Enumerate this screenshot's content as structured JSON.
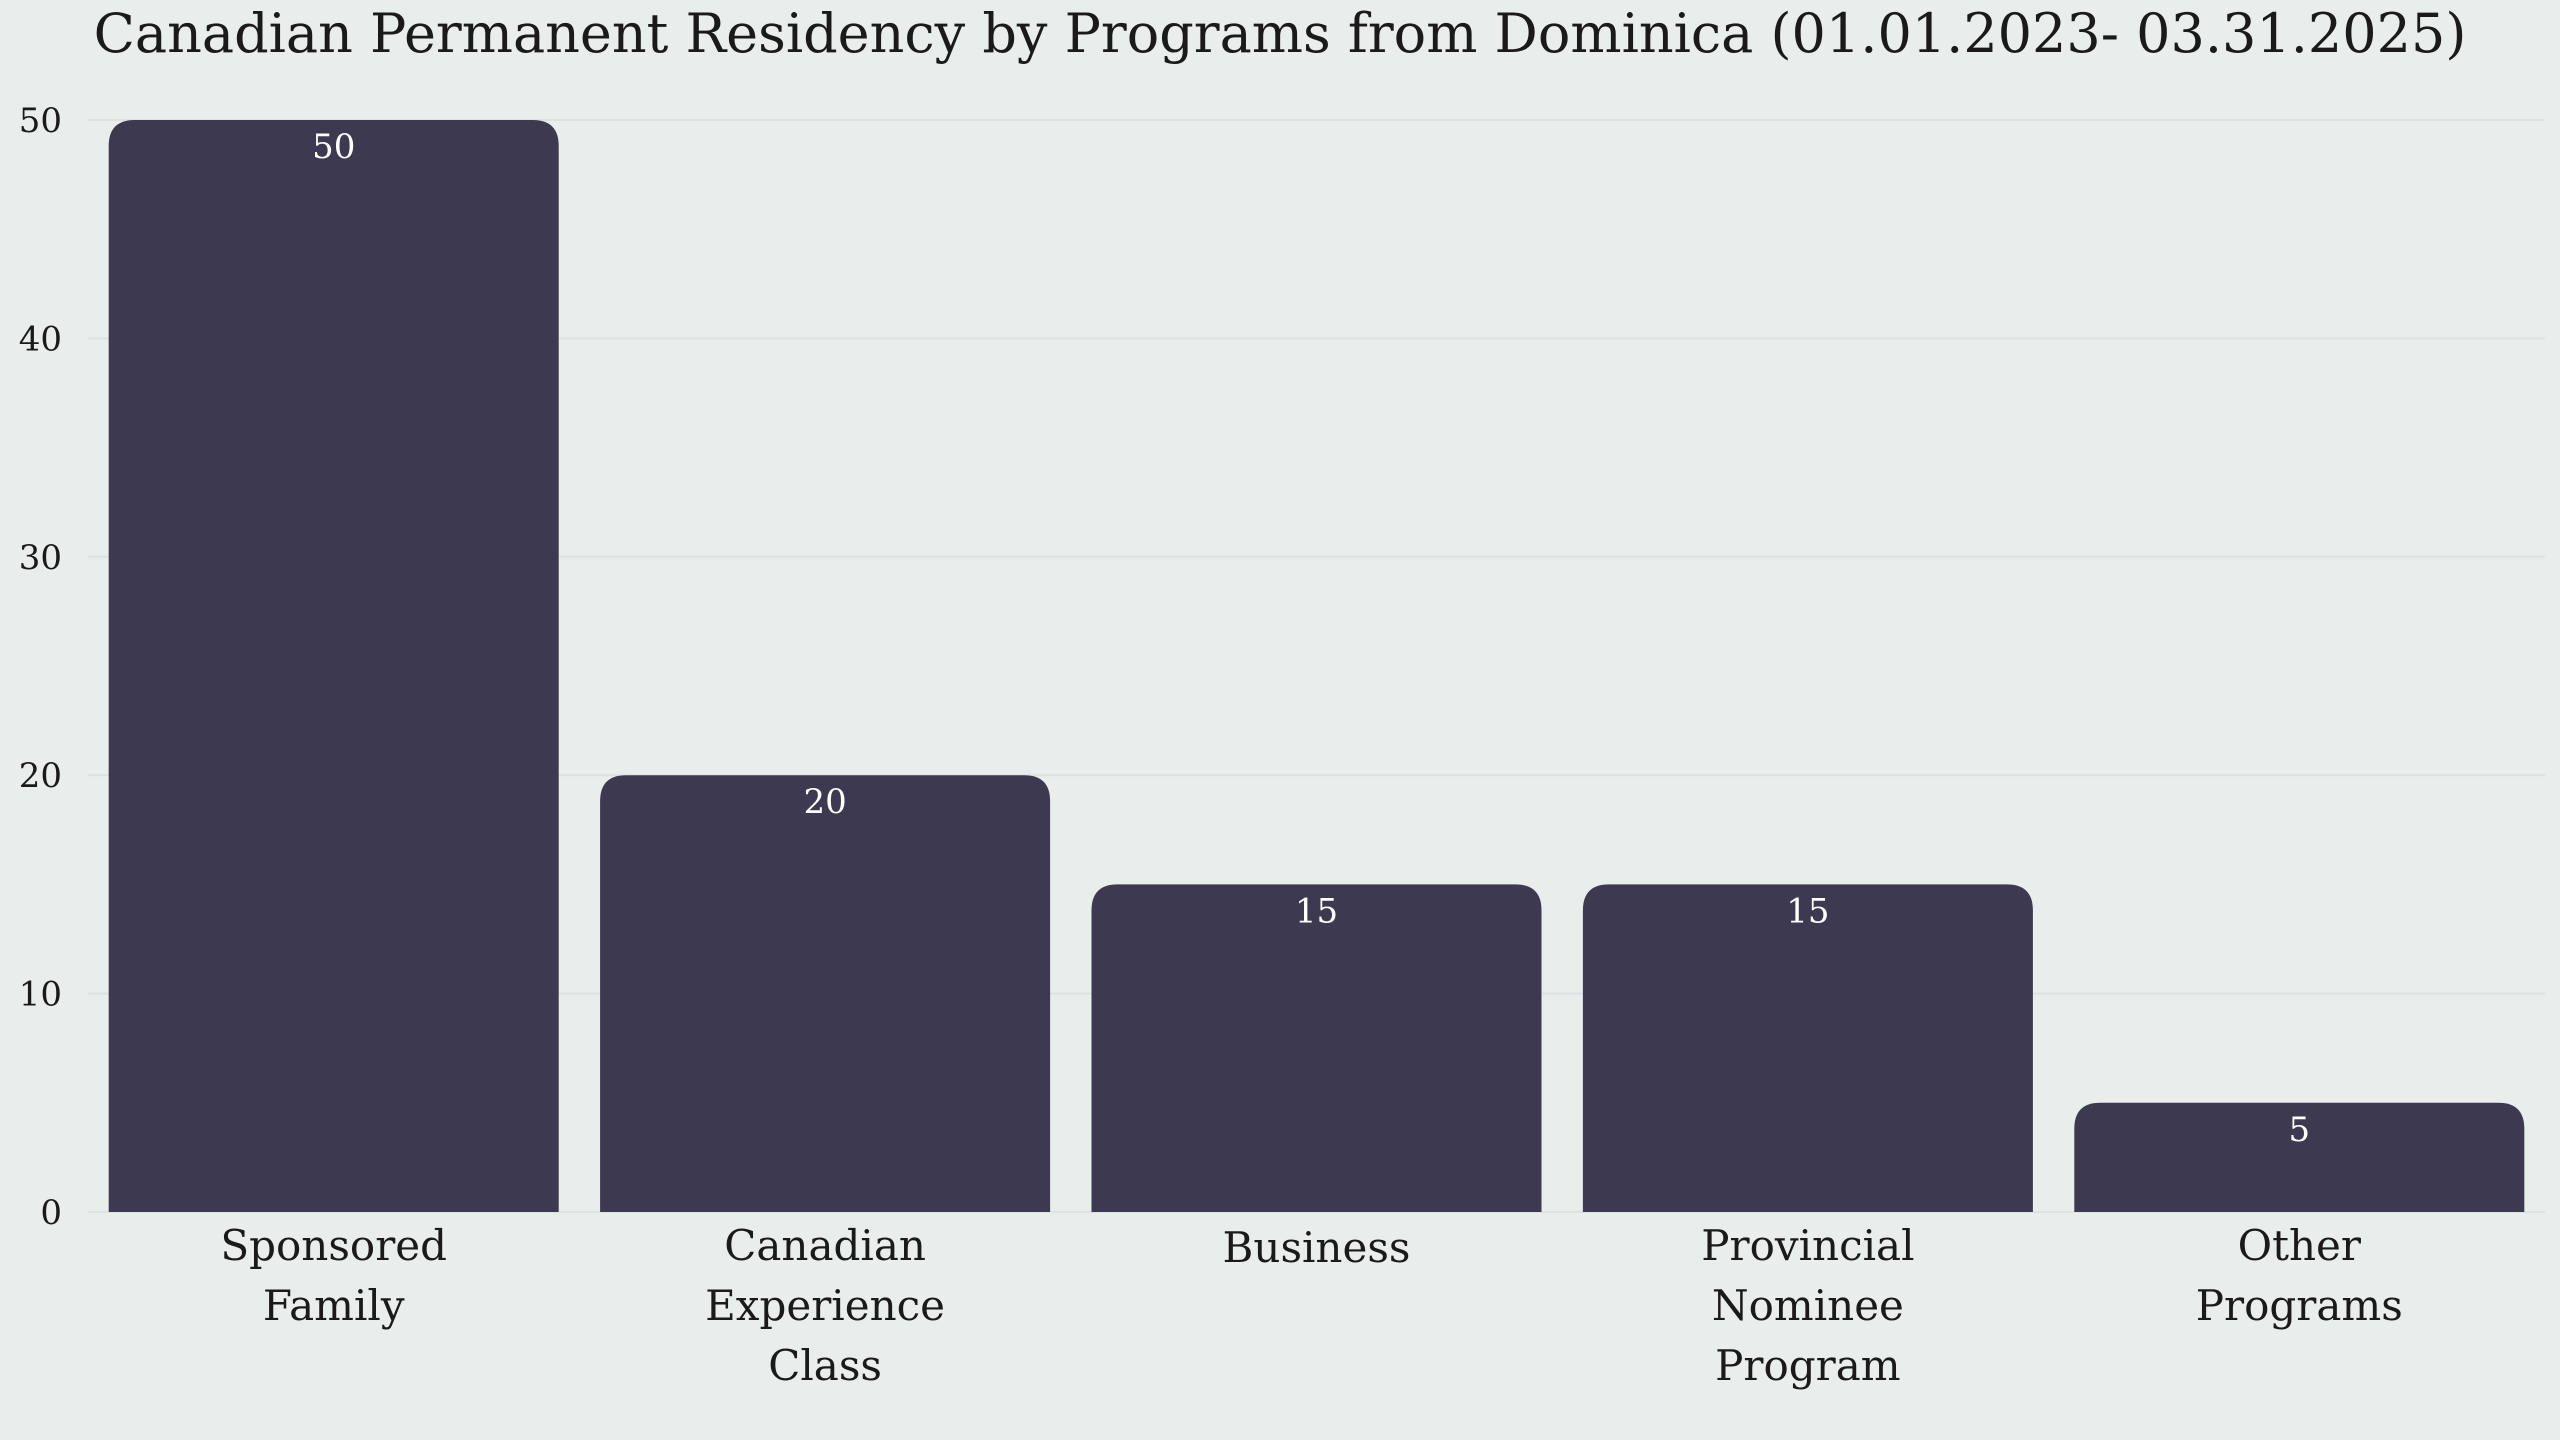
{
  "chart_data": {
    "type": "bar",
    "title": "Canadian Permanent Residency by Programs from Dominica (01.01.2023- 03.31.2025)",
    "categories": [
      [
        "Sponsored",
        "Family"
      ],
      [
        "Canadian",
        "Experience",
        "Class"
      ],
      [
        "Business"
      ],
      [
        "Provincial",
        "Nominee",
        "Program"
      ],
      [
        "Other",
        "Programs"
      ]
    ],
    "values": [
      50,
      20,
      15,
      15,
      5
    ],
    "ylim": [
      0,
      50
    ],
    "yticks": [
      0,
      10,
      20,
      30,
      40,
      50
    ],
    "xlabel": "",
    "ylabel": "",
    "grid": true,
    "bar_color": "#3d3950",
    "background": "#e9edec"
  }
}
